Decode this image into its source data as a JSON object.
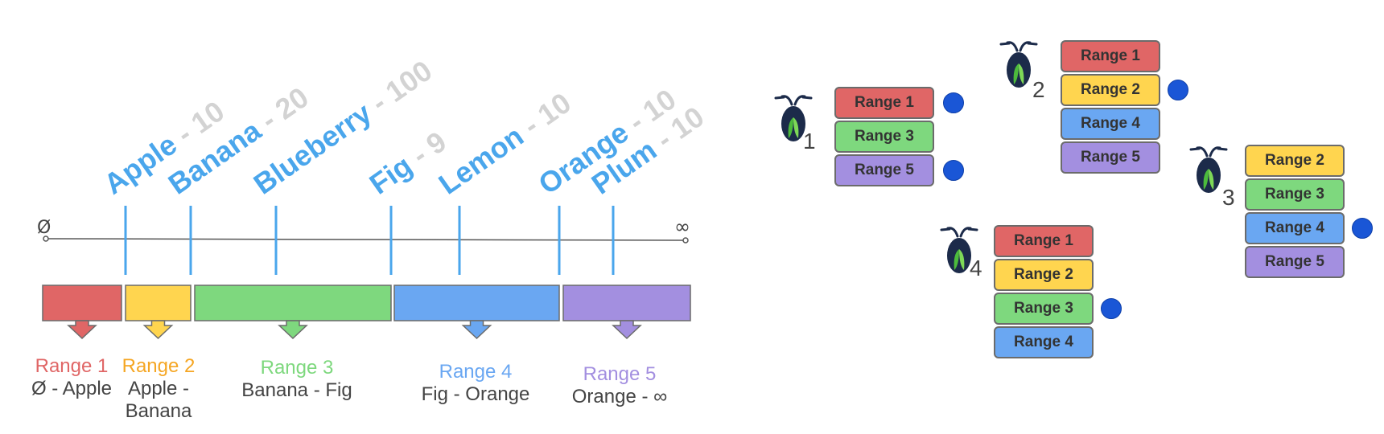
{
  "symbols": {
    "start": "Ø",
    "end": "∞"
  },
  "keys": [
    {
      "name": "Apple",
      "count": "10"
    },
    {
      "name": "Banana",
      "count": "20"
    },
    {
      "name": "Blueberry",
      "count": "100"
    },
    {
      "name": "Fig",
      "count": "9"
    },
    {
      "name": "Lemon",
      "count": "10"
    },
    {
      "name": "Orange",
      "count": "10"
    },
    {
      "name": "Plum",
      "count": "10"
    }
  ],
  "ranges": [
    {
      "title": "Range 1",
      "span_lines": [
        "Ø - Apple"
      ],
      "color": "#e06666"
    },
    {
      "title": "Range 2",
      "span_lines": [
        "Apple -",
        "Banana"
      ],
      "color": "#ffd54f"
    },
    {
      "title": "Range 3",
      "span_lines": [
        "Banana - Fig"
      ],
      "color": "#7ed87e"
    },
    {
      "title": "Range 4",
      "span_lines": [
        "Fig - Orange"
      ],
      "color": "#6aa7f2"
    },
    {
      "title": "Range 5",
      "span_lines": [
        "Orange - ∞"
      ],
      "color": "#a38fe0"
    }
  ],
  "title_colors": {
    "Range 1": "#e06666",
    "Range 2": "#f5a623",
    "Range 3": "#7ed87e",
    "Range 4": "#6aa7f2",
    "Range 5": "#a38fe0"
  },
  "nodes": [
    {
      "number": "1",
      "ranges": [
        "Range 1",
        "Range 3",
        "Range 5"
      ],
      "leaseholders": [
        true,
        false,
        true
      ]
    },
    {
      "number": "2",
      "ranges": [
        "Range 1",
        "Range 2",
        "Range 4",
        "Range 5"
      ],
      "leaseholders": [
        false,
        true,
        false,
        false
      ]
    },
    {
      "number": "3",
      "ranges": [
        "Range 2",
        "Range 3",
        "Range 4",
        "Range 5"
      ],
      "leaseholders": [
        false,
        false,
        true,
        false
      ]
    },
    {
      "number": "4",
      "ranges": [
        "Range 1",
        "Range 2",
        "Range 3",
        "Range 4"
      ],
      "leaseholders": [
        false,
        false,
        true,
        false
      ]
    }
  ],
  "icon": "cockroach-icon",
  "colors": {
    "dot": "#1a56d6",
    "key_line": "#4aa6ec",
    "key_name": "#4aa6ec",
    "count": "#d3d3d3"
  }
}
